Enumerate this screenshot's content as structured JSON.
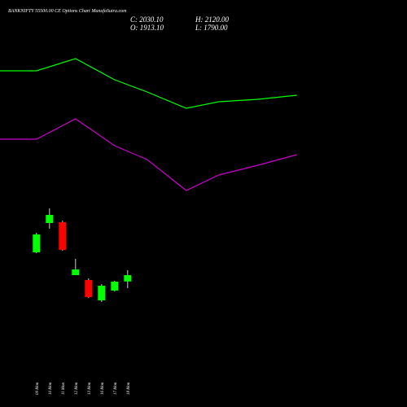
{
  "chart_data": {
    "type": "candlestick",
    "title": "BANKNIFTY 55500.00 CE Options Chart MunafaSutra.com",
    "ohlc_labels": {
      "close": "C: 2030.10",
      "open": "O: 1913.10",
      "high": "H: 2120.00",
      "low": "L: 1790.00"
    },
    "categories": [
      "09 Mon",
      "10 Mon",
      "11 Mon",
      "12 Mon",
      "13 Mon",
      "16 Mon",
      "17 Mon",
      "18 Mon"
    ],
    "open": [
      2450,
      2990,
      3005,
      2030,
      1940,
      1565,
      1745,
      1913.1
    ],
    "high": [
      2810,
      3260,
      3035,
      2330,
      1970,
      1865,
      1925,
      2120
    ],
    "low": [
      2435,
      2885,
      2480,
      2030,
      1610,
      1535,
      1730,
      1790
    ],
    "close": [
      2780,
      3140,
      2495,
      2135,
      1625,
      1835,
      1910,
      2030.1
    ],
    "up_color": "#00ff00",
    "down_color": "#ff0000",
    "lines": [
      {
        "color": "#00ff00",
        "x": [
          -2.8,
          0,
          3,
          6,
          8.5,
          11.5,
          14,
          17,
          20
        ],
        "values": [
          5795,
          5795,
          6020,
          5630,
          5405,
          5105,
          5225,
          5270,
          5345
        ]
      },
      {
        "color": "#cc00cc",
        "x": [
          -2.8,
          0,
          3,
          6,
          8.5,
          11.5,
          14,
          17,
          20
        ],
        "values": [
          4535,
          4535,
          4910,
          4415,
          4160,
          3590,
          3875,
          4055,
          4250
        ]
      }
    ],
    "xlim": [
      -2.8,
      28.45
    ],
    "ylim": [
      500,
      6500
    ]
  }
}
